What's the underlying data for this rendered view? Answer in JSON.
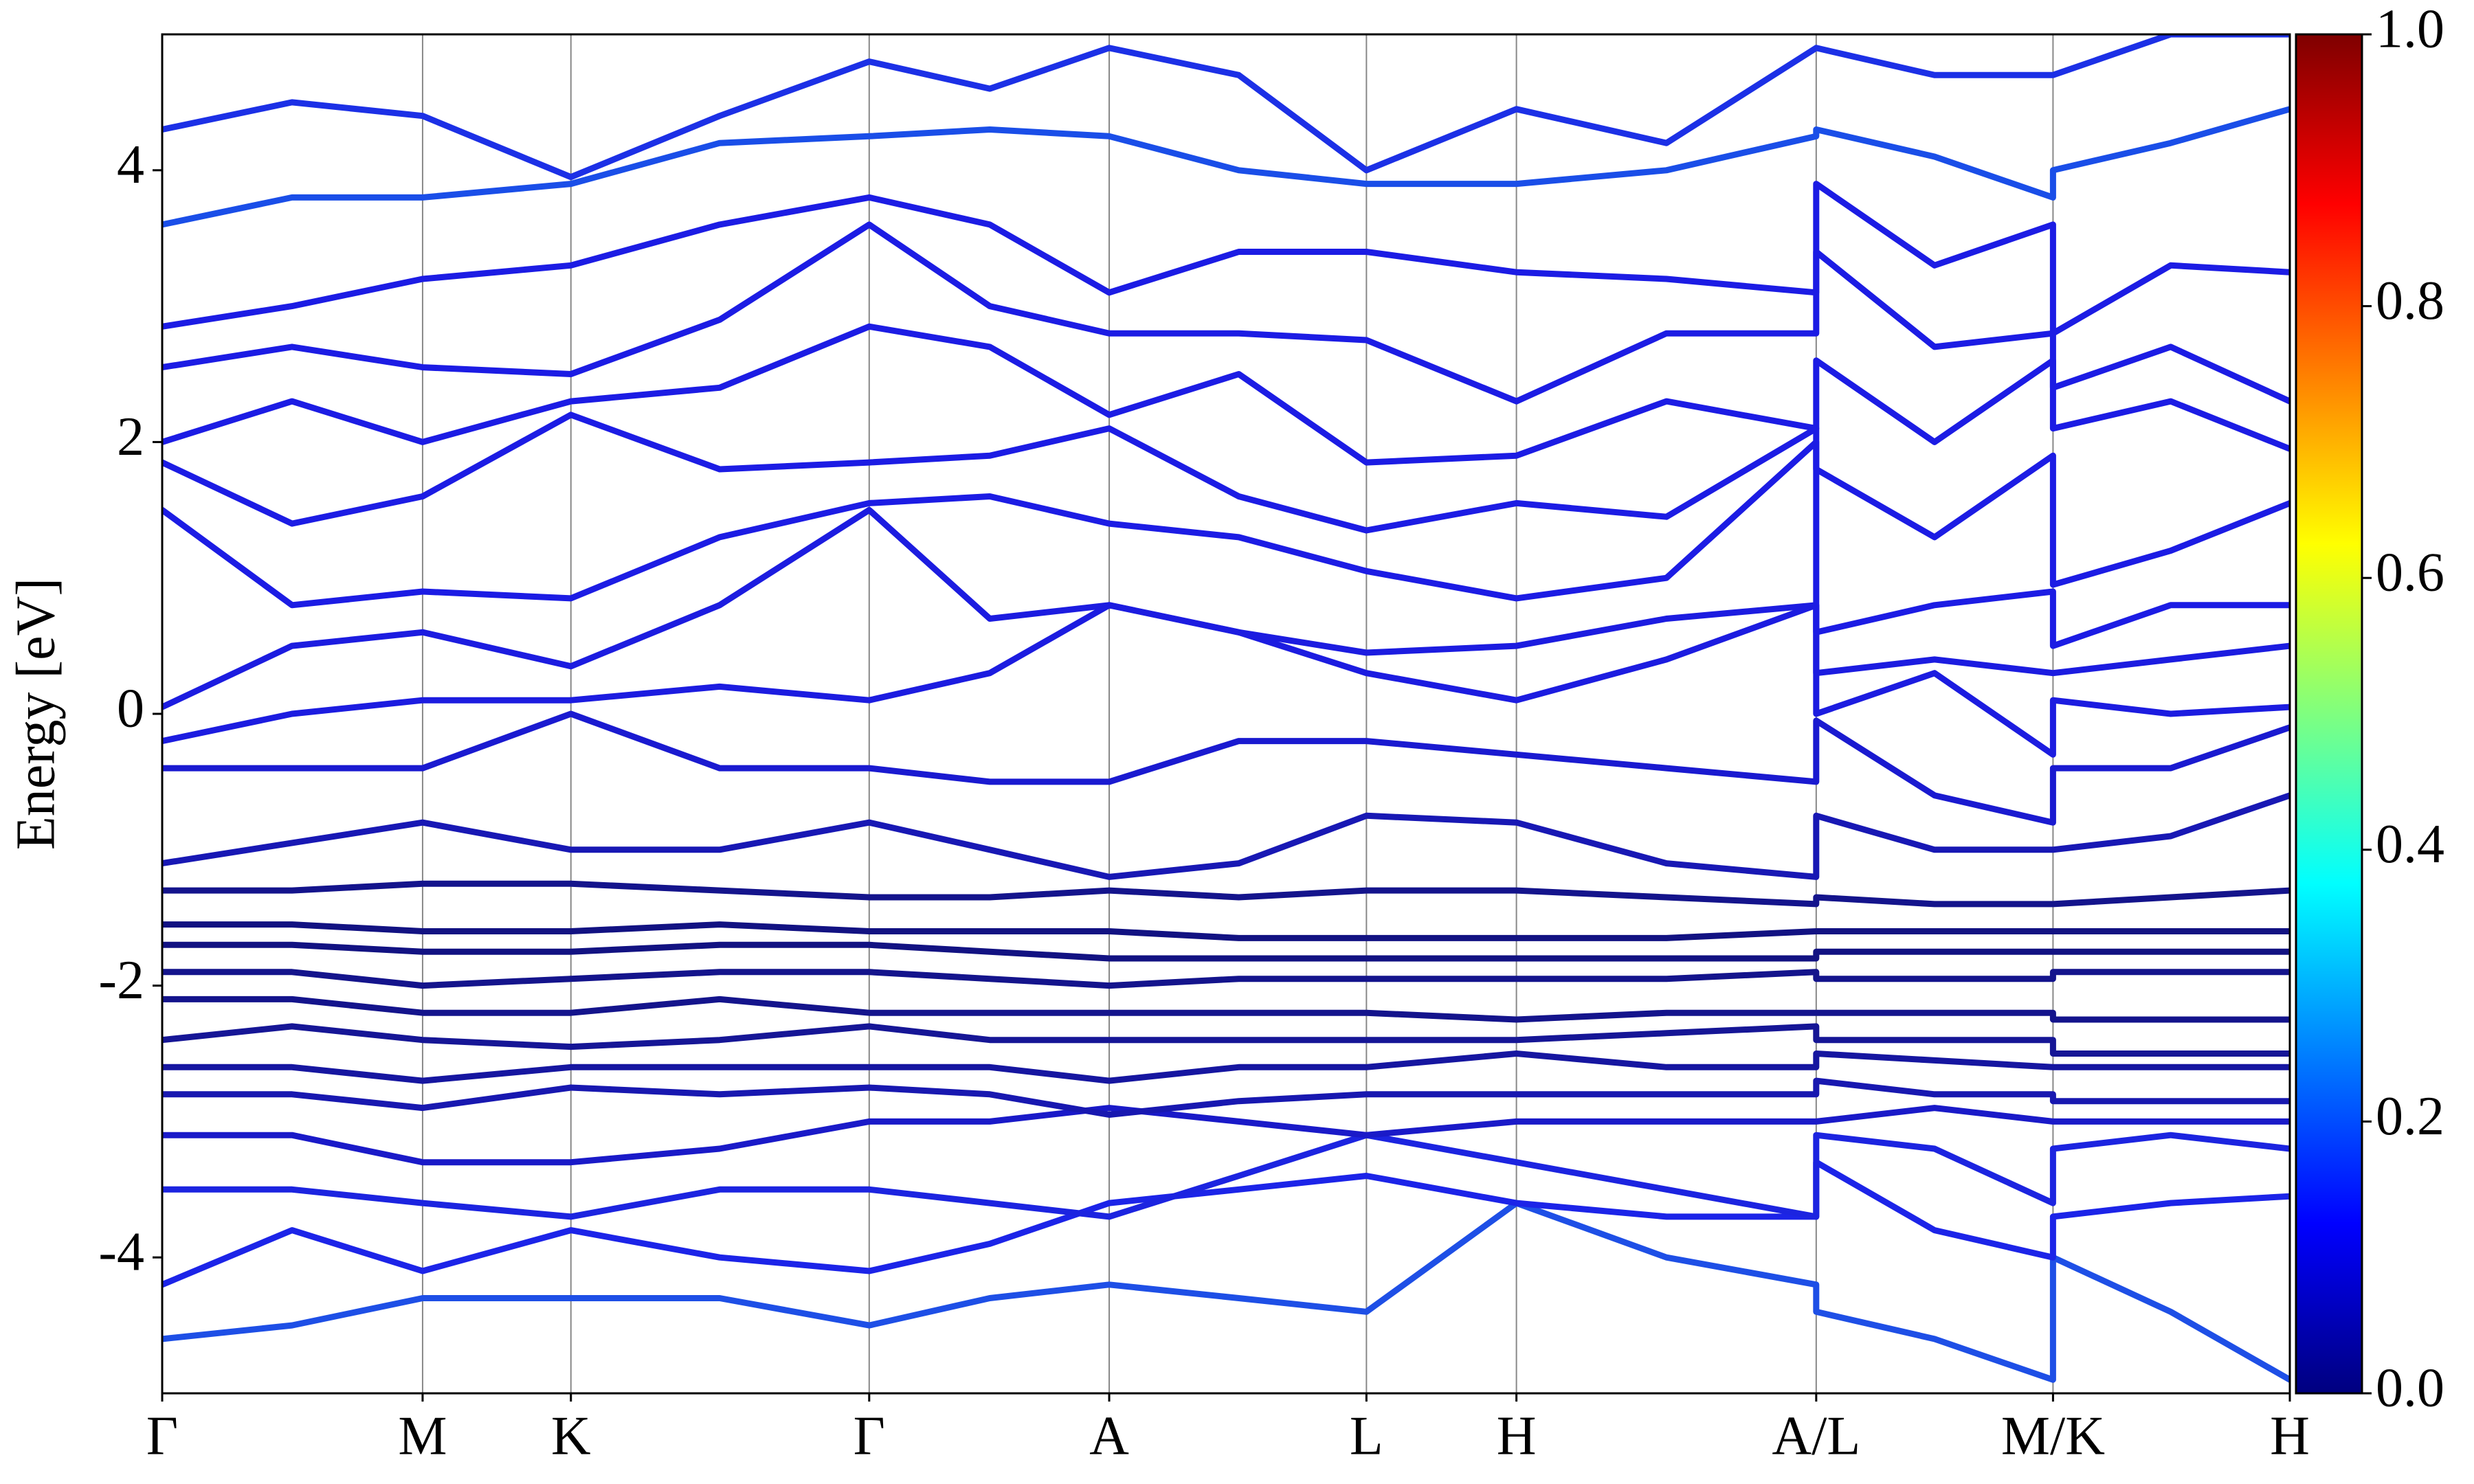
{
  "chart_data": {
    "type": "line",
    "ylabel": "Energy [eV]",
    "x": [
      0,
      0.061,
      0.1224,
      0.1921,
      0.262,
      0.3323,
      0.389,
      0.4451,
      0.506,
      0.566,
      0.6365,
      0.707,
      0.7774,
      0.7774,
      0.833,
      0.8887,
      0.8887,
      0.944,
      1.0
    ],
    "xlim": [
      0,
      1.0
    ],
    "xticks": [
      {
        "value": 0,
        "label": "Γ"
      },
      {
        "value": 0.1224,
        "label": "M"
      },
      {
        "value": 0.1921,
        "label": "K"
      },
      {
        "value": 0.3323,
        "label": "Γ"
      },
      {
        "value": 0.4451,
        "label": "A"
      },
      {
        "value": 0.566,
        "label": "L"
      },
      {
        "value": 0.6365,
        "label": "H"
      },
      {
        "value": 0.7774,
        "label": "A/L"
      },
      {
        "value": 0.8887,
        "label": "M/K"
      },
      {
        "value": 1.0,
        "label": "H"
      }
    ],
    "ylim": [
      -5,
      5
    ],
    "yticks": [
      -4,
      -2,
      0,
      2,
      4
    ],
    "grid": true,
    "series": [
      {
        "color": "#1e4fe6",
        "values": [
          -4.6,
          -4.5,
          -4.3,
          -4.3,
          -4.3,
          -4.5,
          -4.3,
          -4.2,
          -4.3,
          -4.4,
          -3.6,
          -4.0,
          -4.2,
          -4.4,
          -4.6,
          -4.9,
          -4.0,
          -4.4,
          -4.9
        ]
      },
      {
        "color": "#1c24e8",
        "values": [
          -4.2,
          -3.8,
          -4.1,
          -3.8,
          -4.0,
          -4.1,
          -3.9,
          -3.6,
          -3.5,
          -3.4,
          -3.6,
          -3.7,
          -3.7,
          -3.3,
          -3.8,
          -4.0,
          -3.7,
          -3.6,
          -3.55
        ]
      },
      {
        "color": "#1c24e0",
        "values": [
          -3.5,
          -3.5,
          -3.6,
          -3.7,
          -3.5,
          -3.5,
          -3.6,
          -3.7,
          -3.4,
          -3.1,
          -3.3,
          -3.5,
          -3.7,
          -3.1,
          -3.2,
          -3.6,
          -3.2,
          -3.1,
          -3.2
        ]
      },
      {
        "color": "#1a1ac8",
        "values": [
          -3.1,
          -3.1,
          -3.3,
          -3.3,
          -3.2,
          -3.0,
          -3.0,
          -2.9,
          -3.0,
          -3.1,
          -3.0,
          -3.0,
          -3.0,
          -3.0,
          -2.9,
          -3.0,
          -3.0,
          -3.0,
          -3.0
        ]
      },
      {
        "color": "#1818b0",
        "values": [
          -2.8,
          -2.8,
          -2.9,
          -2.75,
          -2.8,
          -2.75,
          -2.8,
          -2.95,
          -2.85,
          -2.8,
          -2.8,
          -2.8,
          -2.8,
          -2.7,
          -2.8,
          -2.8,
          -2.85,
          -2.85,
          -2.85
        ]
      },
      {
        "color": "#1616a0",
        "values": [
          -2.6,
          -2.6,
          -2.7,
          -2.6,
          -2.6,
          -2.6,
          -2.6,
          -2.7,
          -2.6,
          -2.6,
          -2.5,
          -2.6,
          -2.6,
          -2.5,
          -2.55,
          -2.6,
          -2.6,
          -2.6,
          -2.6
        ]
      },
      {
        "color": "#161696",
        "values": [
          -2.4,
          -2.3,
          -2.4,
          -2.45,
          -2.4,
          -2.3,
          -2.4,
          -2.4,
          -2.4,
          -2.4,
          -2.4,
          -2.35,
          -2.3,
          -2.4,
          -2.4,
          -2.4,
          -2.5,
          -2.5,
          -2.5
        ]
      },
      {
        "color": "#14148c",
        "values": [
          -2.1,
          -2.1,
          -2.2,
          -2.2,
          -2.1,
          -2.2,
          -2.2,
          -2.2,
          -2.2,
          -2.2,
          -2.25,
          -2.2,
          -2.2,
          -2.2,
          -2.2,
          -2.2,
          -2.25,
          -2.25,
          -2.25
        ]
      },
      {
        "color": "#14148c",
        "values": [
          -1.9,
          -1.9,
          -2.0,
          -1.95,
          -1.9,
          -1.9,
          -1.95,
          -2.0,
          -1.95,
          -1.95,
          -1.95,
          -1.95,
          -1.9,
          -1.95,
          -1.95,
          -1.95,
          -1.9,
          -1.9,
          -1.9
        ]
      },
      {
        "color": "#121282",
        "values": [
          -1.7,
          -1.7,
          -1.75,
          -1.75,
          -1.7,
          -1.7,
          -1.75,
          -1.8,
          -1.8,
          -1.8,
          -1.8,
          -1.8,
          -1.8,
          -1.75,
          -1.75,
          -1.75,
          -1.75,
          -1.75,
          -1.75
        ]
      },
      {
        "color": "#121282",
        "values": [
          -1.55,
          -1.55,
          -1.6,
          -1.6,
          -1.55,
          -1.6,
          -1.6,
          -1.6,
          -1.65,
          -1.65,
          -1.65,
          -1.65,
          -1.6,
          -1.6,
          -1.6,
          -1.6,
          -1.6,
          -1.6,
          -1.6
        ]
      },
      {
        "color": "#14148c",
        "values": [
          -1.3,
          -1.3,
          -1.25,
          -1.25,
          -1.3,
          -1.35,
          -1.35,
          -1.3,
          -1.35,
          -1.3,
          -1.3,
          -1.35,
          -1.4,
          -1.35,
          -1.4,
          -1.4,
          -1.4,
          -1.35,
          -1.3
        ]
      },
      {
        "color": "#1818b4",
        "values": [
          -1.1,
          -0.95,
          -0.8,
          -1.0,
          -1.0,
          -0.8,
          -1.0,
          -1.2,
          -1.1,
          -0.75,
          -0.8,
          -1.1,
          -1.2,
          -0.75,
          -1.0,
          -1.0,
          -1.0,
          -0.9,
          -0.6
        ]
      },
      {
        "color": "#1a1ad0",
        "values": [
          -0.4,
          -0.4,
          -0.4,
          0.0,
          -0.4,
          -0.4,
          -0.5,
          -0.5,
          -0.2,
          -0.2,
          -0.3,
          -0.4,
          -0.5,
          -0.05,
          -0.6,
          -0.8,
          -0.4,
          -0.4,
          -0.1
        ]
      },
      {
        "color": "#1c1ce0",
        "values": [
          -0.2,
          0.0,
          0.1,
          0.1,
          0.2,
          0.1,
          0.3,
          0.8,
          0.6,
          0.3,
          0.1,
          0.4,
          0.8,
          0.0,
          0.3,
          -0.3,
          0.1,
          0.0,
          0.05
        ]
      },
      {
        "color": "#1c1ce0",
        "values": [
          0.05,
          0.5,
          0.6,
          0.35,
          0.8,
          1.5,
          0.7,
          0.8,
          0.6,
          0.45,
          0.5,
          0.7,
          0.8,
          0.3,
          0.4,
          0.3,
          0.3,
          0.4,
          0.5
        ]
      },
      {
        "color": "#1c1ce4",
        "values": [
          1.5,
          0.8,
          0.9,
          0.85,
          1.3,
          1.55,
          1.6,
          1.4,
          1.3,
          1.05,
          0.85,
          1.0,
          2.0,
          0.6,
          0.8,
          0.9,
          0.5,
          0.8,
          0.8
        ]
      },
      {
        "color": "#1c1ce4",
        "values": [
          1.85,
          1.4,
          1.6,
          2.2,
          1.8,
          1.85,
          1.9,
          2.1,
          1.6,
          1.35,
          1.55,
          1.45,
          2.1,
          1.8,
          1.3,
          1.9,
          0.95,
          1.2,
          1.55
        ]
      },
      {
        "color": "#1c1ce4",
        "values": [
          2.0,
          2.3,
          2.0,
          2.3,
          2.4,
          2.85,
          2.7,
          2.2,
          2.5,
          1.85,
          1.9,
          2.3,
          2.1,
          2.6,
          2.0,
          2.6,
          2.1,
          2.3,
          1.95
        ]
      },
      {
        "color": "#1c1ce4",
        "values": [
          2.55,
          2.7,
          2.55,
          2.5,
          2.9,
          3.6,
          3.0,
          2.8,
          2.8,
          2.75,
          2.3,
          2.8,
          2.8,
          3.4,
          2.7,
          2.8,
          2.4,
          2.7,
          2.3
        ]
      },
      {
        "color": "#1c1ce4",
        "values": [
          2.85,
          3.0,
          3.2,
          3.3,
          3.6,
          3.8,
          3.6,
          3.1,
          3.4,
          3.4,
          3.25,
          3.2,
          3.1,
          3.9,
          3.3,
          3.6,
          2.8,
          3.3,
          3.25
        ]
      },
      {
        "color": "#1a4ee8",
        "values": [
          3.6,
          3.8,
          3.8,
          3.9,
          4.2,
          4.25,
          4.3,
          4.25,
          4.0,
          3.9,
          3.9,
          4.0,
          4.25,
          4.3,
          4.1,
          3.8,
          4.0,
          4.2,
          4.45
        ]
      },
      {
        "color": "#1c30e6",
        "values": [
          4.3,
          4.5,
          4.4,
          3.95,
          4.4,
          4.8,
          4.6,
          4.9,
          4.7,
          4.0,
          4.45,
          4.2,
          4.9,
          4.9,
          4.7,
          4.7,
          4.7,
          5.0,
          5.0
        ]
      }
    ],
    "colorbar": {
      "lim": [
        0,
        1.0
      ],
      "ticks": [
        {
          "value": 0,
          "label": "0.0"
        },
        0.2,
        0.4,
        0.6,
        0.8,
        {
          "value": 1.0,
          "label": "1.0"
        }
      ],
      "colors": [
        "#00007f",
        "#0000ff",
        "#007fff",
        "#00ffff",
        "#7fff7f",
        "#ffff00",
        "#ff7f00",
        "#ff0000",
        "#7f0000"
      ]
    }
  }
}
